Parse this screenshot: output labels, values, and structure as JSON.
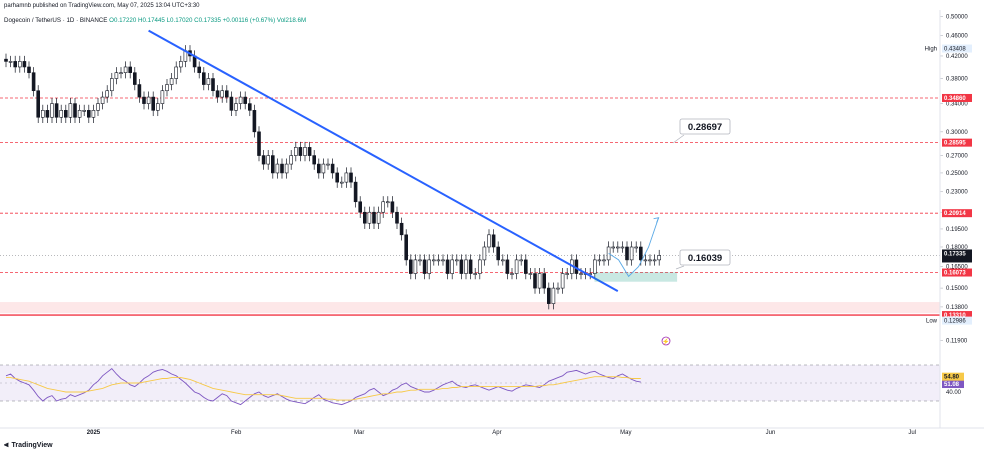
{
  "header": {
    "publisher_line": "parhamnb published on TradingView.com, May 07, 2025 13:04 UTC+3:30",
    "symbol": "Dogecoin / TetherUS · 1D · BINANCE",
    "ohlc": "O0.17220 H0.17445 L0.17020 C0.17335 +0.00116 (+0.67%) Vol218.6M"
  },
  "footer": {
    "brand": "TradingView",
    "logo_icon": "tradingview-logo-icon"
  },
  "chart_data": [
    {
      "type": "candlestick",
      "title": "Dogecoin / TetherUS · 1D · BINANCE",
      "x_ticks": [
        "2025",
        "Feb",
        "Mar",
        "Apr",
        "May",
        "Jun",
        "Jul"
      ],
      "y_ticks": [
        "0.50000",
        "0.46000",
        "0.42000",
        "0.38000",
        "0.34000",
        "0.30000",
        "0.27000",
        "0.25000",
        "0.23000",
        "0.21000",
        "0.19500",
        "0.18000",
        "0.16500",
        "0.15000",
        "0.13800",
        "0.11900"
      ],
      "ylim": [
        0.115,
        0.515
      ],
      "y_scale": "log",
      "closes": [
        0.41,
        0.41,
        0.4,
        0.41,
        0.4,
        0.39,
        0.36,
        0.32,
        0.33,
        0.32,
        0.34,
        0.32,
        0.33,
        0.32,
        0.34,
        0.32,
        0.33,
        0.33,
        0.32,
        0.33,
        0.34,
        0.35,
        0.36,
        0.38,
        0.39,
        0.39,
        0.4,
        0.39,
        0.37,
        0.35,
        0.34,
        0.35,
        0.33,
        0.34,
        0.36,
        0.37,
        0.38,
        0.4,
        0.41,
        0.43,
        0.42,
        0.4,
        0.39,
        0.37,
        0.38,
        0.36,
        0.35,
        0.36,
        0.35,
        0.33,
        0.34,
        0.35,
        0.34,
        0.33,
        0.3,
        0.27,
        0.26,
        0.27,
        0.25,
        0.26,
        0.25,
        0.26,
        0.27,
        0.28,
        0.27,
        0.28,
        0.27,
        0.26,
        0.25,
        0.26,
        0.26,
        0.25,
        0.24,
        0.24,
        0.25,
        0.24,
        0.22,
        0.21,
        0.2,
        0.21,
        0.2,
        0.21,
        0.22,
        0.22,
        0.21,
        0.2,
        0.19,
        0.17,
        0.16,
        0.17,
        0.17,
        0.16,
        0.17,
        0.17,
        0.17,
        0.17,
        0.16,
        0.17,
        0.17,
        0.16,
        0.17,
        0.16,
        0.16,
        0.17,
        0.18,
        0.19,
        0.18,
        0.17,
        0.17,
        0.16,
        0.16,
        0.17,
        0.17,
        0.16,
        0.16,
        0.15,
        0.16,
        0.15,
        0.14,
        0.15,
        0.15,
        0.16,
        0.16,
        0.17,
        0.16,
        0.16,
        0.16,
        0.16,
        0.17,
        0.17,
        0.17,
        0.18,
        0.18,
        0.18,
        0.18,
        0.17,
        0.18,
        0.18,
        0.17,
        0.17,
        0.17,
        0.17,
        0.17335
      ],
      "price_levels": [
        {
          "value": 0.3486,
          "label": "0.34860",
          "style": "dashed",
          "color": "#f23645"
        },
        {
          "value": 0.28595,
          "label": "0.28595",
          "style": "dashed",
          "color": "#f23645"
        },
        {
          "value": 0.20914,
          "label": "0.20914",
          "style": "dashed",
          "color": "#f23645"
        },
        {
          "value": 0.16073,
          "label": "0.16073",
          "style": "dashed",
          "color": "#f23645"
        },
        {
          "value": 0.1331,
          "label": "0.13310",
          "style": "solid",
          "color": "#f23645"
        }
      ],
      "support_zone": [
        0.141,
        0.1342
      ],
      "current_price": {
        "value": 0.17335,
        "label": "0.17335",
        "countdown": "14:25:50"
      },
      "high": {
        "label": "High",
        "value": "0.43408"
      },
      "low": {
        "label": "Low",
        "value": "0.12986"
      },
      "annotations": [
        {
          "text": "0.28697",
          "target": 0.28697
        },
        {
          "text": "0.16039",
          "target": 0.16039
        }
      ],
      "trendline": {
        "from": {
          "x": "Jan 18",
          "y": 0.47
        },
        "to": {
          "x": "Apr 29",
          "y": 0.148
        },
        "color": "#2962ff"
      },
      "projection_path": [
        0.175,
        0.17,
        0.158,
        0.165,
        0.18,
        0.205
      ],
      "demand_box": [
        0.16073,
        0.1545
      ]
    },
    {
      "type": "line",
      "indicator": "RSI",
      "y_ticks": [
        "40.00"
      ],
      "ylim": [
        20,
        80
      ],
      "band": [
        30,
        70
      ],
      "series": [
        {
          "role": "rsi",
          "color": "#7e57c2",
          "current": "51.08",
          "values": [
            58,
            60,
            55,
            52,
            50,
            48,
            42,
            35,
            30,
            34,
            36,
            30,
            32,
            33,
            37,
            35,
            37,
            39,
            42,
            48,
            52,
            58,
            62,
            66,
            60,
            55,
            52,
            48,
            46,
            50,
            55,
            58,
            62,
            64,
            65,
            63,
            60,
            58,
            54,
            50,
            45,
            40,
            38,
            34,
            31,
            30,
            34,
            38,
            36,
            30,
            28,
            26,
            30,
            34,
            38,
            40,
            36,
            34,
            36,
            38,
            35,
            32,
            30,
            29,
            28,
            27,
            30,
            34,
            37,
            32,
            30,
            28,
            27,
            26,
            28,
            30,
            34,
            36,
            38,
            42,
            44,
            40,
            36,
            38,
            42,
            44,
            48,
            50,
            46,
            44,
            42,
            40,
            40,
            42,
            45,
            48,
            50,
            52,
            48,
            46,
            45,
            47,
            48,
            46,
            44,
            42,
            44,
            46,
            44,
            42,
            41,
            44,
            46,
            48,
            47,
            46,
            45,
            48,
            52,
            54,
            56,
            58,
            62,
            63,
            64,
            62,
            60,
            62,
            63,
            60,
            58,
            56,
            55,
            58,
            60,
            57,
            54,
            52,
            51
          ]
        },
        {
          "role": "rsi-ma",
          "color": "#f7c948",
          "current": "54.80",
          "values": [
            56,
            56,
            55,
            54,
            53,
            52,
            50,
            48,
            46,
            44,
            43,
            42,
            41,
            40,
            40,
            40,
            40,
            40,
            41,
            42,
            43,
            44,
            46,
            48,
            49,
            50,
            50,
            50,
            50,
            50,
            51,
            52,
            53,
            54,
            55,
            55,
            56,
            56,
            56,
            55,
            54,
            52,
            50,
            48,
            46,
            44,
            43,
            42,
            41,
            40,
            39,
            38,
            37,
            37,
            37,
            37,
            37,
            37,
            37,
            37,
            36,
            35,
            34,
            33,
            33,
            33,
            33,
            33,
            33,
            33,
            32,
            32,
            31,
            31,
            31,
            31,
            32,
            33,
            34,
            35,
            36,
            37,
            38,
            38,
            39,
            40,
            40,
            41,
            42,
            42,
            43,
            43,
            43,
            43,
            43,
            44,
            44,
            45,
            45,
            46,
            46,
            46,
            46,
            46,
            46,
            46,
            46,
            46,
            46,
            46,
            46,
            46,
            46,
            46,
            46,
            46,
            47,
            47,
            48,
            48,
            49,
            50,
            51,
            52,
            53,
            54,
            55,
            56,
            57,
            57,
            57,
            57,
            57,
            57,
            56,
            56,
            55,
            55,
            55
          ]
        }
      ]
    }
  ]
}
